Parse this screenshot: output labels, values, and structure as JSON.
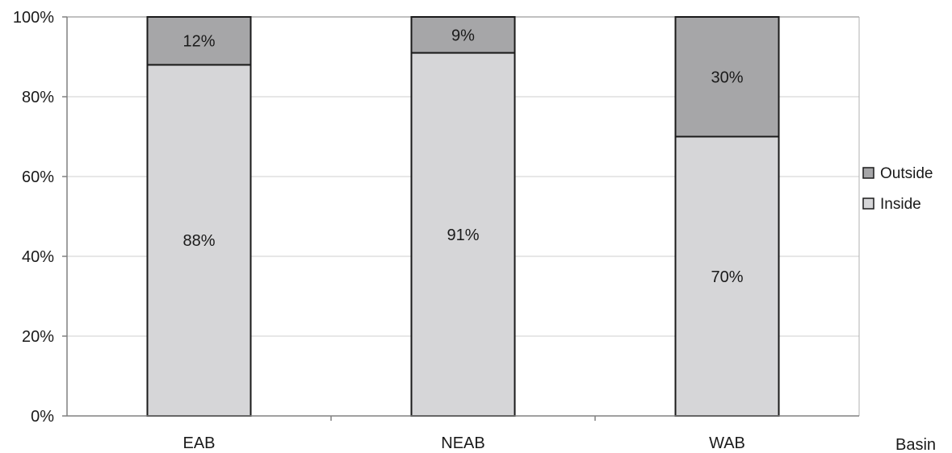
{
  "chart_data": {
    "type": "bar",
    "stacked": true,
    "normalized": true,
    "categories": [
      "EAB",
      "NEAB",
      "WAB"
    ],
    "series": [
      {
        "name": "Inside",
        "values": [
          88,
          91,
          70
        ],
        "labels": [
          "88%",
          "91%",
          "70%"
        ],
        "color": "#d6d6d8"
      },
      {
        "name": "Outside",
        "values": [
          12,
          9,
          30
        ],
        "labels": [
          "12%",
          "9%",
          "30%"
        ],
        "color": "#a6a6a8"
      }
    ],
    "xlabel": "Basin",
    "ylabel": "",
    "ylim": [
      0,
      100
    ],
    "yticks": [
      "0%",
      "20%",
      "40%",
      "60%",
      "80%",
      "100%"
    ],
    "grid": true,
    "legend_position": "right",
    "legend_order": [
      "Outside",
      "Inside"
    ]
  }
}
